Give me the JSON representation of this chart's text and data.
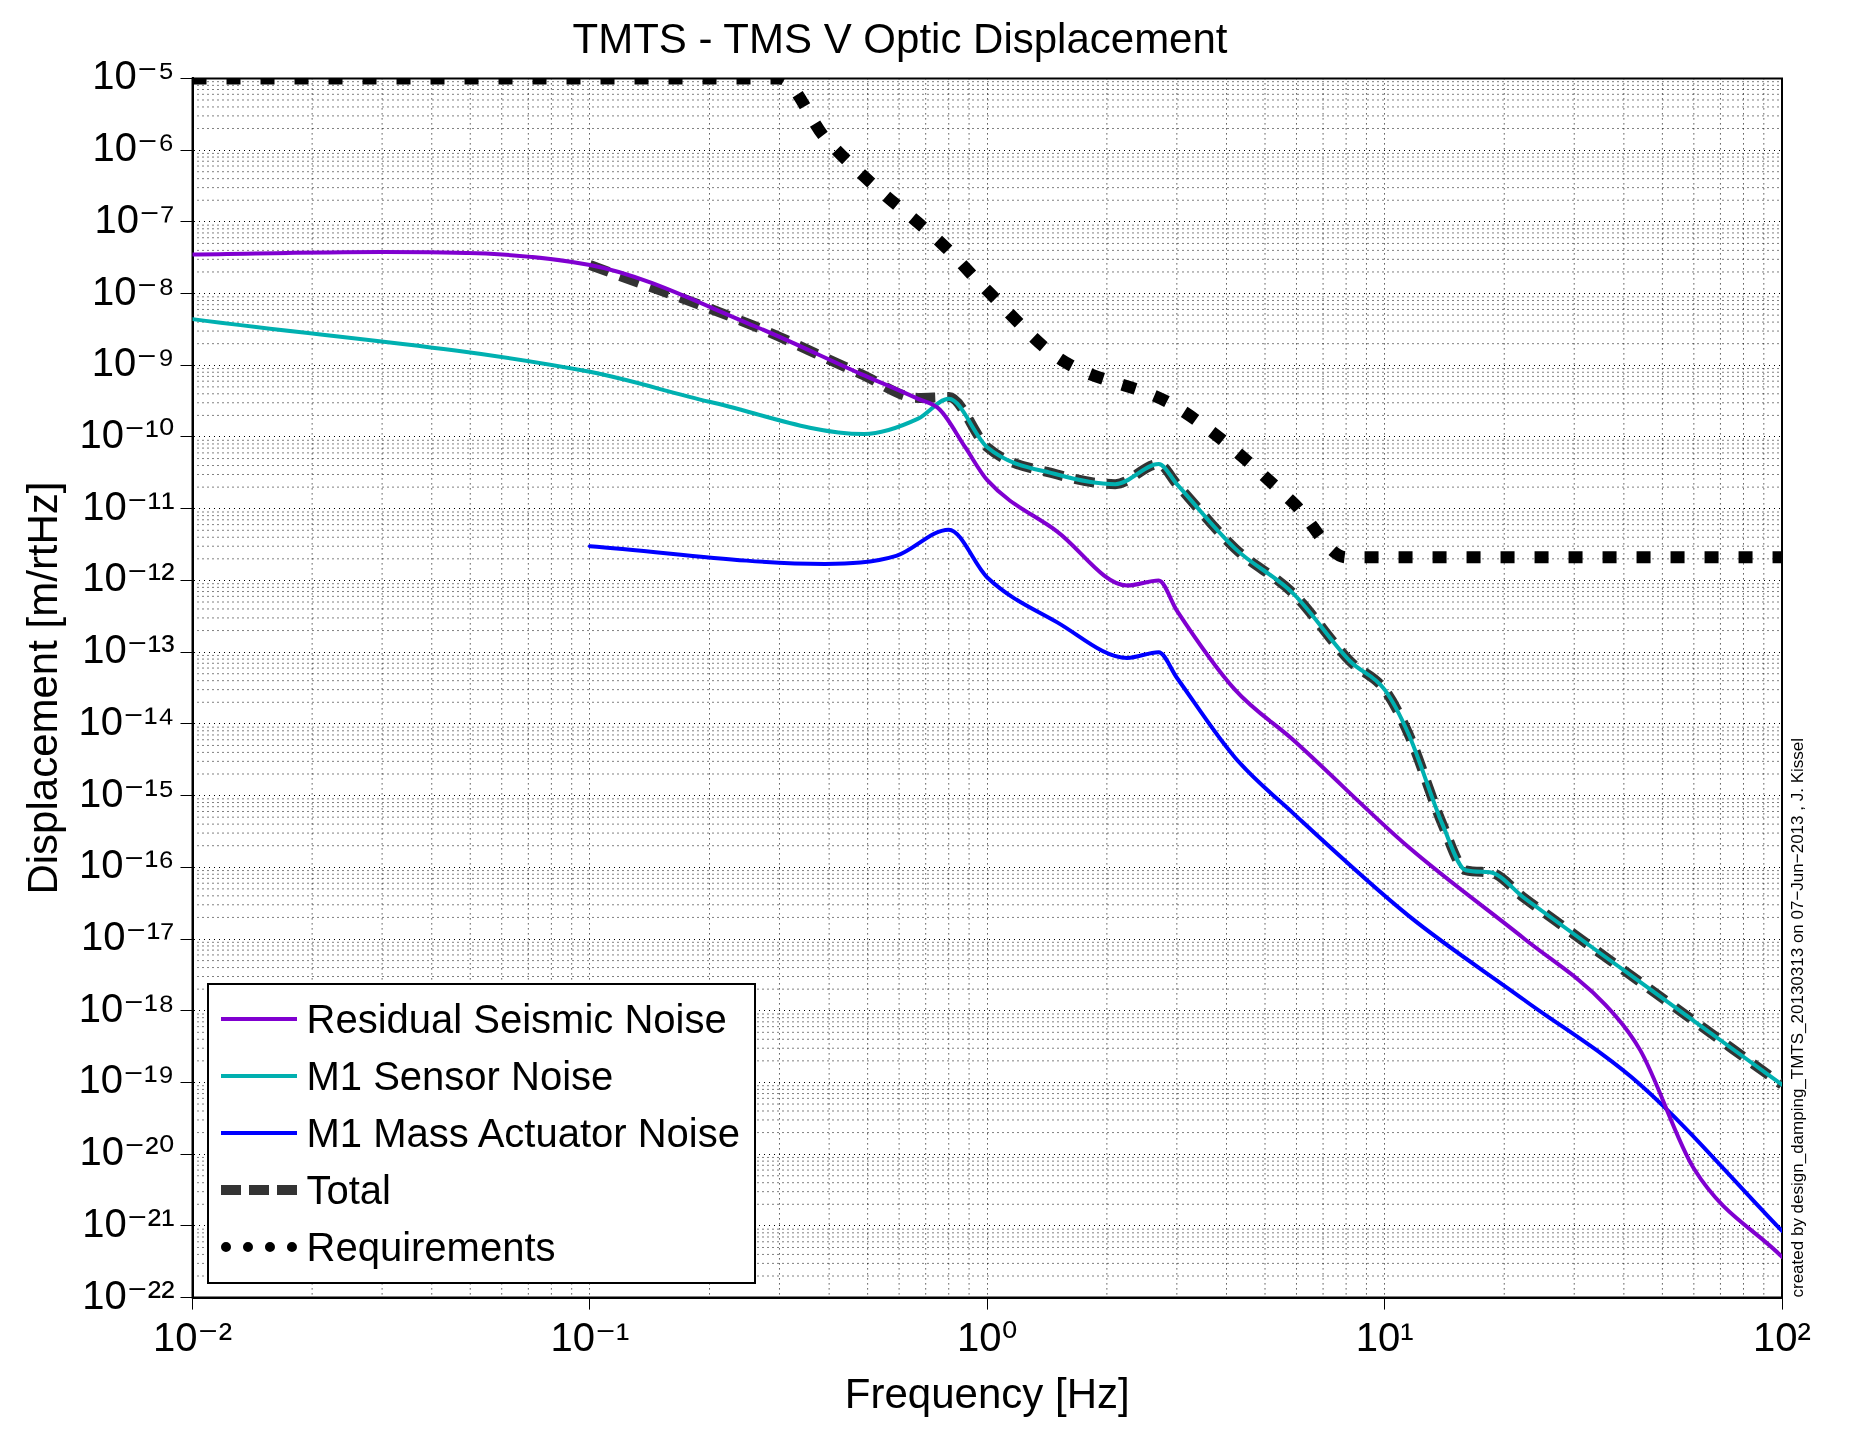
{
  "chart_data": {
    "type": "line",
    "title": "TMTS - TMS V Optic Displacement",
    "xlabel": "Frequency [Hz]",
    "ylabel": "Displacement [m/rtHz]",
    "log": "xy",
    "grid": true,
    "legend": "bottom left",
    "xlim": [
      0.01,
      100
    ],
    "ylim": [
      1e-22,
      1e-05
    ],
    "xticks": [
      {
        "value": 0.01,
        "label": "10⁻²"
      },
      {
        "value": 0.1,
        "label": "10⁻¹"
      },
      {
        "value": 1,
        "label": "10⁰"
      },
      {
        "value": 10,
        "label": "10¹"
      },
      {
        "value": 100,
        "label": "10²"
      }
    ],
    "yticks": [
      {
        "value": 1e-22,
        "label": "10⁻²²"
      },
      {
        "value": 1e-21,
        "label": "10⁻²¹"
      },
      {
        "value": 1e-20,
        "label": "10⁻²⁰"
      },
      {
        "value": 1e-19,
        "label": "10⁻¹⁹"
      },
      {
        "value": 1e-18,
        "label": "10⁻¹⁸"
      },
      {
        "value": 1e-17,
        "label": "10⁻¹⁷"
      },
      {
        "value": 1e-16,
        "label": "10⁻¹⁶"
      },
      {
        "value": 1e-15,
        "label": "10⁻¹⁵"
      },
      {
        "value": 1e-14,
        "label": "10⁻¹⁴"
      },
      {
        "value": 1e-13,
        "label": "10⁻¹³"
      },
      {
        "value": 1e-12,
        "label": "10⁻¹²"
      },
      {
        "value": 1e-11,
        "label": "10⁻¹¹"
      },
      {
        "value": 1e-10,
        "label": "10⁻¹⁰"
      },
      {
        "value": 1e-09,
        "label": "10⁻⁹"
      },
      {
        "value": 1e-08,
        "label": "10⁻⁸"
      },
      {
        "value": 1e-07,
        "label": "10⁻⁷"
      },
      {
        "value": 1e-06,
        "label": "10⁻⁶"
      },
      {
        "value": 1e-05,
        "label": "10⁻⁵"
      }
    ],
    "annotations": [
      "created by design_damping_TMTS_20130313 on 07−Jun−2013 , J. Kissel"
    ],
    "series": [
      {
        "name": "Residual Seismic Noise",
        "color": "#8000d0",
        "line_style": "solid",
        "x": [
          0.01,
          0.03,
          0.1,
          0.26,
          0.48,
          0.67,
          0.76,
          0.88,
          1.0,
          1.5,
          2.25,
          2.7,
          3.0,
          4.2,
          5.9,
          11.5,
          22.5,
          36,
          44,
          60,
          100
        ],
        "values": [
          3.5e-08,
          3.8e-08,
          2.5e-08,
          3.5e-09,
          7.6e-10,
          3.4e-10,
          2.4e-10,
          7.2e-11,
          2.5e-11,
          4.8e-12,
          8.5e-13,
          1e-12,
          3.8e-13,
          3e-14,
          5.9e-15,
          1.9e-16,
          1e-17,
          1.2e-18,
          2.8e-19,
          6.3e-21,
          3.7e-22
        ]
      },
      {
        "name": "M1 Sensor Noise",
        "color": "#00b0b0",
        "line_style": "solid",
        "x": [
          0.01,
          0.1,
          0.2,
          0.49,
          0.67,
          0.8,
          1.0,
          1.5,
          2.1,
          2.7,
          3.0,
          4.2,
          5.9,
          8.2,
          10,
          11.5,
          14,
          16,
          18.4,
          22.5,
          44,
          100
        ],
        "values": [
          4.4e-09,
          8.1e-10,
          3.1e-10,
          1.1e-10,
          1.8e-10,
          3.4e-10,
          7.2e-11,
          3e-11,
          2.2e-11,
          4.2e-11,
          2.2e-11,
          2.8e-12,
          6.5e-13,
          7.4e-14,
          3e-14,
          7.1e-15,
          3.9e-16,
          9.1e-17,
          8.5e-17,
          3.7e-17,
          2.5e-18,
          9.3e-20
        ]
      },
      {
        "name": "M1 Mass Actuator Noise",
        "color": "#0000ff",
        "line_style": "solid",
        "x": [
          0.1,
          0.39,
          0.59,
          0.8,
          1.0,
          1.5,
          2.25,
          2.7,
          3.0,
          4.2,
          5.9,
          11.5,
          22.5,
          44,
          100
        ],
        "values": [
          3e-12,
          1.7e-12,
          2.2e-12,
          5.1e-12,
          1.1e-12,
          2.6e-13,
          8.3e-14,
          1e-13,
          4.4e-14,
          3.4e-15,
          5.6e-16,
          2.1e-17,
          1.4e-18,
          9.3e-20,
          8.5e-22
        ]
      },
      {
        "name": "Total",
        "color": "#333333",
        "line_style": "dashed",
        "x": [
          0.1,
          0.26,
          0.48,
          0.67,
          0.8,
          1.0,
          1.5,
          2.1,
          2.7,
          3.0,
          4.2,
          5.9,
          8.2,
          10,
          11.5,
          14,
          16,
          18.4,
          22.5,
          44,
          100
        ],
        "values": [
          2.5e-08,
          3.5e-09,
          7.6e-10,
          3.5e-10,
          3.6e-10,
          7.2e-11,
          3e-11,
          2.2e-11,
          4.2e-11,
          2.2e-11,
          2.8e-12,
          6.5e-13,
          7.4e-14,
          3e-14,
          7.1e-15,
          3.9e-16,
          9.1e-17,
          8.5e-17,
          3.7e-17,
          2.5e-18,
          9.3e-20
        ]
      },
      {
        "name": "Requirements",
        "color": "#000000",
        "line_style": "dotted",
        "x": [
          0.01,
          0.3,
          0.39,
          0.51,
          0.77,
          1.0,
          1.5,
          3.0,
          5.9,
          8.0,
          100
        ],
        "values": [
          1e-05,
          1e-05,
          1.5e-06,
          3.5e-07,
          4.9e-08,
          1.1e-08,
          1.3e-09,
          2.6e-10,
          1.2e-11,
          2.1e-12,
          2.1e-12
        ]
      }
    ]
  }
}
